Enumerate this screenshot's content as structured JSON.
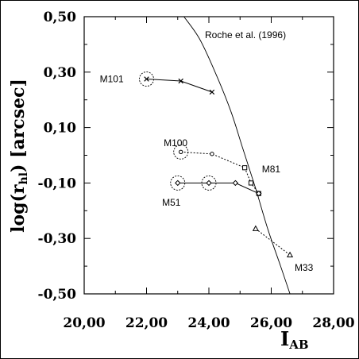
{
  "chart_data": {
    "type": "scatter",
    "title": "",
    "annotation": "Roche et al. (1996)",
    "xlabel": {
      "main": "I",
      "sub": "AB"
    },
    "ylabel": {
      "prefix": "log(r",
      "sub": "hl",
      "suffix": ") [arcsec]"
    },
    "xlim": [
      20,
      28
    ],
    "ylim": [
      -0.5,
      0.5
    ],
    "xticks": [
      {
        "value": 20,
        "label": "20,00"
      },
      {
        "value": 22,
        "label": "22,00"
      },
      {
        "value": 24,
        "label": "24,00"
      },
      {
        "value": 26,
        "label": "26,00"
      },
      {
        "value": 28,
        "label": "28,00"
      }
    ],
    "yticks": [
      {
        "value": 0.5,
        "label": "0,50"
      },
      {
        "value": 0.3,
        "label": "0,30"
      },
      {
        "value": 0.1,
        "label": "0,10"
      },
      {
        "value": -0.1,
        "label": "-0,10"
      },
      {
        "value": -0.3,
        "label": "-0,30"
      },
      {
        "value": -0.5,
        "label": "-0,50"
      }
    ],
    "grid": false,
    "series": [
      {
        "label": "M101",
        "marker": "x",
        "line": "solid",
        "label_pos": {
          "x": 20.5,
          "y": 0.275
        },
        "points": [
          {
            "x": 22.0,
            "y": 0.275
          },
          {
            "x": 23.1,
            "y": 0.268
          },
          {
            "x": 24.1,
            "y": 0.228
          }
        ],
        "circled": [
          0
        ]
      },
      {
        "label": "M100",
        "marker": "o",
        "line": "dotted",
        "label_pos": {
          "x": 22.55,
          "y": 0.045
        },
        "points": [
          {
            "x": 23.1,
            "y": 0.012
          },
          {
            "x": 24.1,
            "y": 0.005
          },
          {
            "x": 25.15,
            "y": -0.045
          }
        ],
        "circled": [
          0
        ]
      },
      {
        "label": "M81",
        "marker": "square",
        "line": "dotted",
        "label_pos": {
          "x": 25.7,
          "y": -0.05
        },
        "points": [
          {
            "x": 25.15,
            "y": -0.045
          },
          {
            "x": 25.35,
            "y": -0.1
          },
          {
            "x": 25.6,
            "y": -0.138
          }
        ],
        "circled": []
      },
      {
        "label": "M51",
        "marker": "diamond",
        "line": "solid",
        "label_pos": {
          "x": 22.5,
          "y": -0.17
        },
        "points": [
          {
            "x": 23.0,
            "y": -0.1
          },
          {
            "x": 24.0,
            "y": -0.1
          },
          {
            "x": 24.85,
            "y": -0.1
          },
          {
            "x": 25.6,
            "y": -0.138
          }
        ],
        "circled": [
          0,
          1
        ]
      },
      {
        "label": "M33",
        "marker": "triangle",
        "line": "dotted",
        "label_pos": {
          "x": 26.75,
          "y": -0.405
        },
        "points": [
          {
            "x": 25.5,
            "y": -0.265
          },
          {
            "x": 26.6,
            "y": -0.36
          }
        ],
        "circled": []
      }
    ],
    "reference_curve": {
      "name": "Roche et al. (1996)",
      "points": [
        {
          "x": 23.2,
          "y": 0.5
        },
        {
          "x": 23.7,
          "y": 0.42
        },
        {
          "x": 24.2,
          "y": 0.3
        },
        {
          "x": 24.7,
          "y": 0.16
        },
        {
          "x": 25.1,
          "y": 0.02
        },
        {
          "x": 25.5,
          "y": -0.12
        },
        {
          "x": 25.9,
          "y": -0.27
        },
        {
          "x": 26.3,
          "y": -0.4
        },
        {
          "x": 26.6,
          "y": -0.5
        }
      ]
    }
  }
}
